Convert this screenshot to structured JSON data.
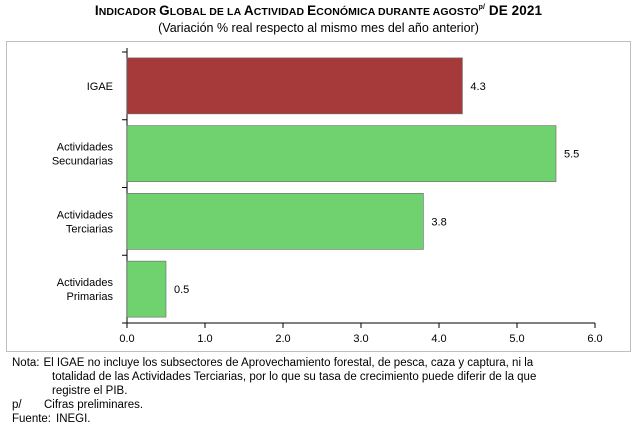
{
  "title": {
    "parts": [
      {
        "text": "I",
        "big": true
      },
      {
        "text": "NDICADOR ",
        "big": false
      },
      {
        "text": "G",
        "big": true
      },
      {
        "text": "LOBAL DE LA ",
        "big": false
      },
      {
        "text": "A",
        "big": true
      },
      {
        "text": "CTIVIDAD ",
        "big": false
      },
      {
        "text": "E",
        "big": true
      },
      {
        "text": "CONÓMICA DURANTE AGOSTO",
        "big": false
      }
    ],
    "superscript": "p/",
    "tail": " DE 2021"
  },
  "subtitle": "(Variación % real respecto al mismo mes del año anterior)",
  "chart_data": {
    "type": "bar",
    "orientation": "horizontal",
    "categories": [
      {
        "lines": [
          "IGAE"
        ],
        "value": 4.3,
        "value_label": "4.3",
        "color": "#a63a3a"
      },
      {
        "lines": [
          "Actividades",
          "Secundarias"
        ],
        "value": 5.5,
        "value_label": "5.5",
        "color": "#6fd26f"
      },
      {
        "lines": [
          "Actividades",
          "Terciarias"
        ],
        "value": 3.8,
        "value_label": "3.8",
        "color": "#6fd26f"
      },
      {
        "lines": [
          "Actividades",
          "Primarias"
        ],
        "value": 0.5,
        "value_label": "0.5",
        "color": "#6fd26f"
      }
    ],
    "xlim": [
      0.0,
      6.0
    ],
    "xticks": [
      "0.0",
      "1.0",
      "2.0",
      "3.0",
      "4.0",
      "5.0",
      "6.0"
    ],
    "grid": false,
    "legend": "none"
  },
  "notes": {
    "nota_label": "Nota:",
    "nota_lines": [
      "El IGAE no incluye los subsectores de Aprovechamiento forestal, de pesca, caza y captura, ni la",
      "totalidad de las Actividades Terciarias, por lo que su tasa de crecimiento puede diferir de la que",
      "registre el PIB."
    ],
    "p_label": "p/",
    "p_text": "Cifras preliminares.",
    "fuente_label": "Fuente:",
    "fuente_text": "INEGI."
  }
}
